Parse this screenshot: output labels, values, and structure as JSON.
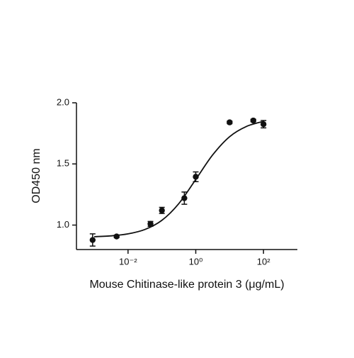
{
  "chart_data": {
    "type": "scatter",
    "x_label": "Mouse Chitinase-like protein 3 (μg/mL)",
    "y_label": "OD450 nm",
    "xscale": "log",
    "xlim": [
      0.0003,
      1000
    ],
    "xticks": [
      {
        "value": 0.01,
        "label": "10⁻²"
      },
      {
        "value": 1,
        "label": "10⁰"
      },
      {
        "value": 100,
        "label": "10²"
      }
    ],
    "ylim": [
      0.8,
      2.0
    ],
    "yticks": [
      {
        "value": 1.0,
        "label": "1.0"
      },
      {
        "value": 1.5,
        "label": "1.5"
      },
      {
        "value": 2.0,
        "label": "2.0"
      }
    ],
    "color": "#111111",
    "x": [
      0.0009,
      0.0046,
      0.046,
      0.1,
      0.46,
      1,
      10,
      50,
      100
    ],
    "values": [
      0.878,
      0.907,
      1.01,
      1.12,
      1.22,
      1.395,
      1.84,
      1.855,
      1.825
    ],
    "errors": [
      0.05,
      0.01,
      0.02,
      0.025,
      0.05,
      0.04,
      0.01,
      0.01,
      0.03
    ],
    "fit": {
      "x": [
        0.001,
        0.00316,
        0.01,
        0.0316,
        0.1,
        0.316,
        1,
        3.16,
        10,
        31.6,
        100
      ],
      "values": [
        0.905,
        0.912,
        0.928,
        0.964,
        1.039,
        1.176,
        1.373,
        1.574,
        1.723,
        1.807,
        1.848
      ]
    }
  }
}
